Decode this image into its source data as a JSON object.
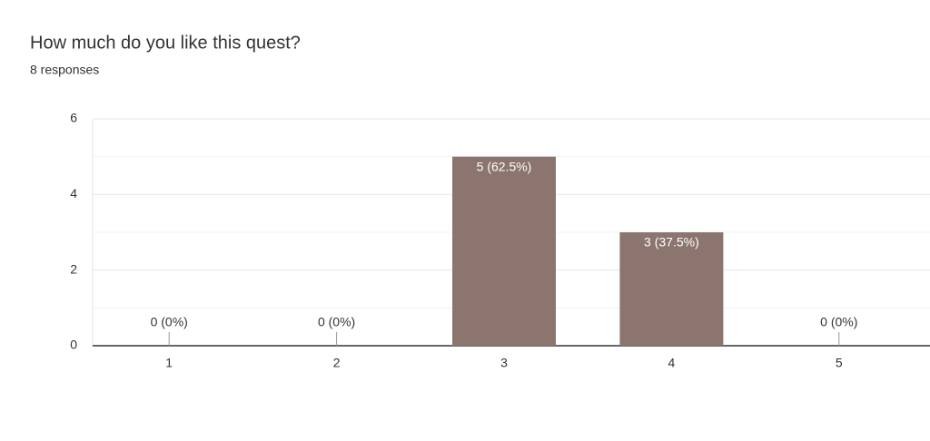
{
  "chart_data": {
    "type": "bar",
    "title": "How much do you like this quest?",
    "subtitle": "8 responses",
    "categories": [
      "1",
      "2",
      "3",
      "4",
      "5"
    ],
    "values": [
      0,
      0,
      5,
      3,
      0
    ],
    "value_labels": [
      "0 (0%)",
      "0 (0%)",
      "5 (62.5%)",
      "3 (37.5%)",
      "0 (0%)"
    ],
    "color": "#8b756e",
    "ylim": [
      0,
      6
    ],
    "yticks": [
      0,
      2,
      4,
      6
    ],
    "minor_yticks": [
      1,
      3,
      5
    ],
    "grid": true
  }
}
